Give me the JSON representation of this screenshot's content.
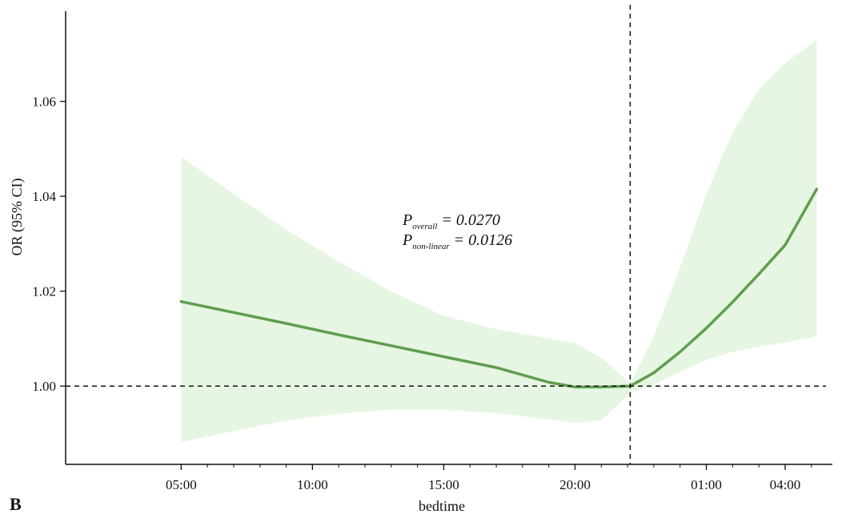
{
  "chart_data": {
    "type": "line",
    "panel_label": "B",
    "xlabel": "bedtime",
    "ylabel": "OR (95% CI)",
    "x_ticks": [
      "05:00",
      "10:00",
      "15:00",
      "20:00",
      "01:00",
      "04:00"
    ],
    "x_tick_hours": [
      5,
      10,
      15,
      20,
      25,
      28
    ],
    "x_range_hours": [
      0.6,
      29.8
    ],
    "y_ticks": [
      "1.00",
      "1.02",
      "1.04",
      "1.06"
    ],
    "y_tick_values": [
      1.0,
      1.02,
      1.04,
      1.06
    ],
    "ylim": [
      0.9835,
      1.079
    ],
    "reference_x_hour": 22.1,
    "reference_y": 1.0,
    "annotation": {
      "p_overall_label": "P",
      "p_overall_sub": "overall",
      "p_overall_value": " = 0.0270",
      "p_nonlinear_label": "P",
      "p_nonlinear_sub": "non-linear",
      "p_nonlinear_value": " = 0.0126"
    },
    "series": [
      {
        "x_hours": [
          5,
          7,
          9,
          11,
          13,
          15,
          17,
          19,
          20,
          21,
          22.1,
          23,
          24,
          25,
          26,
          27,
          28,
          29.2
        ],
        "y": [
          1.0178,
          1.0155,
          1.0132,
          1.0108,
          1.0085,
          1.0062,
          1.0039,
          1.0008,
          0.9998,
          0.9998,
          1.0,
          1.0028,
          1.0072,
          1.0122,
          1.0177,
          1.0236,
          1.0297,
          1.0415
        ],
        "lower": [
          0.9882,
          0.9905,
          0.9927,
          0.9942,
          0.995,
          0.995,
          0.9943,
          0.993,
          0.9922,
          0.9928,
          0.9985,
          1.0003,
          1.003,
          1.0055,
          1.0072,
          1.0083,
          1.0092,
          1.0105
        ],
        "upper": [
          1.0483,
          1.0405,
          1.033,
          1.0262,
          1.02,
          1.0148,
          1.012,
          1.01,
          1.009,
          1.006,
          1.0005,
          1.0105,
          1.025,
          1.0405,
          1.0535,
          1.0625,
          1.068,
          1.073
        ]
      }
    ],
    "colors": {
      "line": "#5e9e4e",
      "band": "#e6f6e2",
      "axis": "#111111"
    }
  }
}
